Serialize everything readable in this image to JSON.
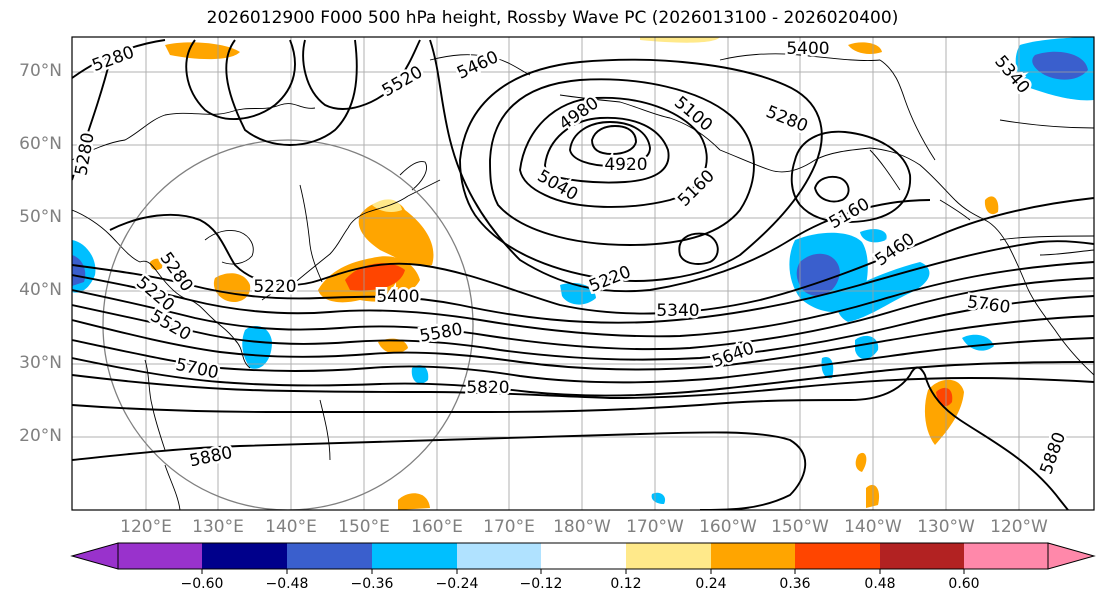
{
  "title": "2026012900 F000 500 hPa height, Rossby Wave PC (2026013100 - 2026020400)",
  "lat_labels": [
    "70°N",
    "60°N",
    "50°N",
    "40°N",
    "30°N",
    "20°N"
  ],
  "lon_labels": [
    "120°E",
    "130°E",
    "140°E",
    "150°E",
    "160°E",
    "170°E",
    "180°W",
    "170°W",
    "160°W",
    "150°W",
    "140°W",
    "130°W",
    "120°W"
  ],
  "contour_labels": [
    "5280",
    "5520",
    "5460",
    "5400",
    "4980",
    "5100",
    "5280",
    "5340",
    "5280",
    "4920",
    "5040",
    "5160",
    "5160",
    "5460",
    "5220",
    "5280",
    "5220",
    "5400",
    "5520",
    "5580",
    "5220",
    "5340",
    "5640",
    "5760",
    "5700",
    "5820",
    "5880",
    "5880"
  ],
  "colorbar": {
    "ticks": [
      "−0.60",
      "−0.48",
      "−0.36",
      "−0.24",
      "−0.12",
      "0.12",
      "0.24",
      "0.36",
      "0.48",
      "0.60"
    ],
    "colors": [
      "#9932cc",
      "#00008b",
      "#3a5fcd",
      "#00bfff",
      "#b0e2ff",
      "#ffffff",
      "#ffe98a",
      "#ffa500",
      "#ff4500",
      "#b22222",
      "#ff88aa"
    ]
  },
  "chart_data": {
    "type": "map",
    "title": "2026012900 F000 500 hPa height, Rossby Wave PC (2026013100 - 2026020400)",
    "variable": "500 hPa geopotential height contours with Rossby Wave PC shading",
    "contour_interval": 60,
    "lat_range": [
      10,
      75
    ],
    "lon_range": [
      "110°E",
      "115°W"
    ],
    "colorbar_levels": [
      -0.6,
      -0.48,
      -0.36,
      -0.24,
      -0.12,
      0.12,
      0.24,
      0.36,
      0.48,
      0.6
    ]
  }
}
